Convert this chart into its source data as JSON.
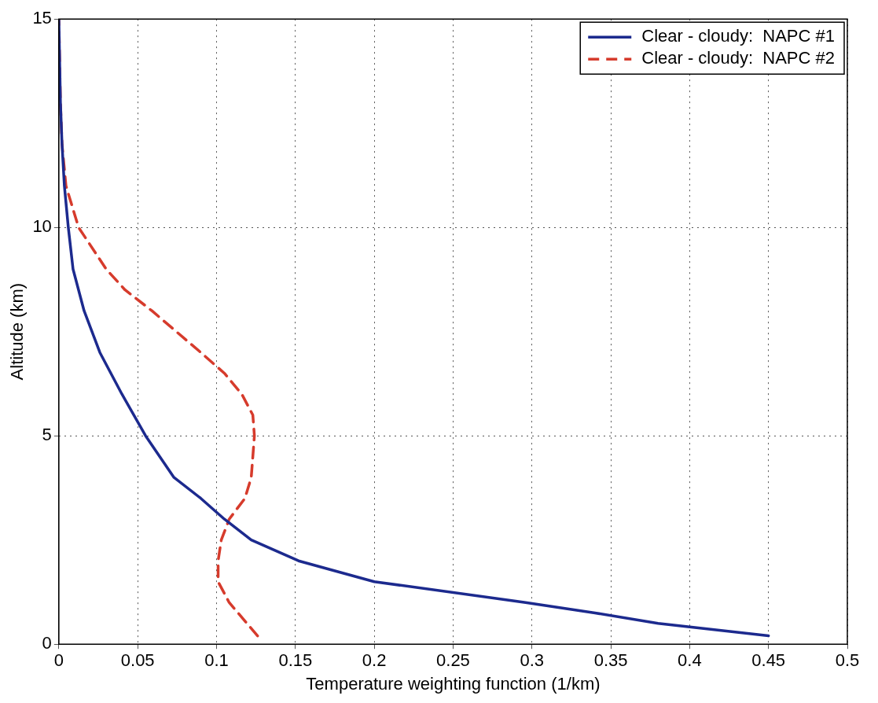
{
  "chart_data": {
    "type": "line",
    "xlabel": "Temperature weighting function (1/km)",
    "ylabel": "Altitude (km)",
    "xlim": [
      0,
      0.5
    ],
    "xticks": [
      0,
      0.05,
      0.1,
      0.15,
      0.2,
      0.25,
      0.3,
      0.35,
      0.4,
      0.45,
      0.5
    ],
    "ylim": [
      0,
      15
    ],
    "yticks": [
      0,
      5,
      10,
      15
    ],
    "grid": true,
    "legend": "top right",
    "marker": "none",
    "series": [
      {
        "name": "Clear - cloudy:  NAPC #1",
        "color": "#1c2a8e",
        "line_style": "solid",
        "x": [
          0.45,
          0.38,
          0.34,
          0.296,
          0.2,
          0.152,
          0.122,
          0.105,
          0.09,
          0.073,
          0.055,
          0.04,
          0.026,
          0.016,
          0.009,
          0.006,
          0.0035,
          0.002,
          0.001,
          0.0005,
          0
        ],
        "values": [
          0.2,
          0.5,
          0.75,
          1,
          1.5,
          2,
          2.5,
          3,
          3.5,
          4,
          5,
          6,
          7,
          8,
          9,
          10,
          11,
          12,
          13,
          14,
          15
        ]
      },
      {
        "name": "Clear - cloudy:  NAPC #2",
        "color": "#d63b2c",
        "line_style": "dashed",
        "x": [
          0.126,
          0.108,
          0.101,
          0.101,
          0.103,
          0.108,
          0.118,
          0.122,
          0.124,
          0.123,
          0.116,
          0.105,
          0.09,
          0.059,
          0.042,
          0.03,
          0.0125,
          0.0045,
          0.002,
          0.001,
          0
        ],
        "values": [
          0.2,
          1,
          1.5,
          2,
          2.5,
          3,
          3.5,
          4,
          5,
          5.5,
          6,
          6.5,
          7,
          8,
          8.5,
          9,
          10,
          11,
          12,
          13,
          15
        ]
      }
    ]
  }
}
